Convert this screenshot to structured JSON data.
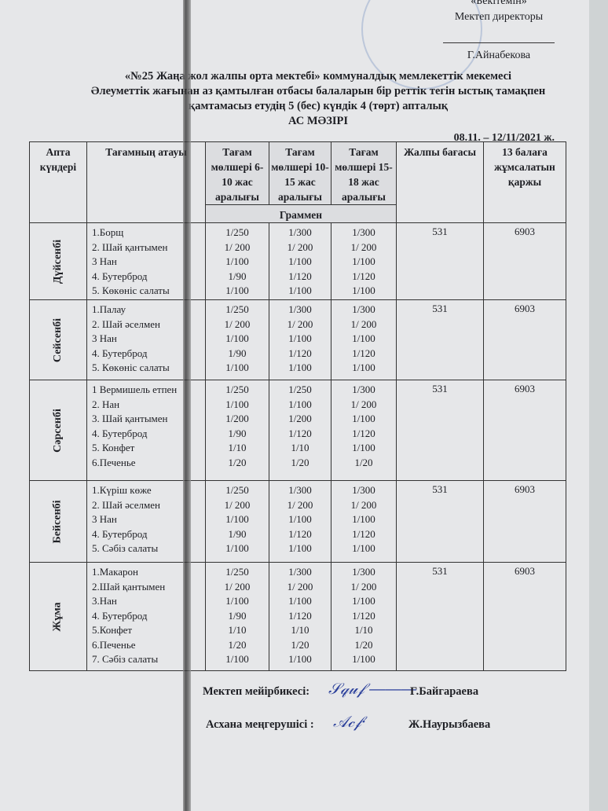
{
  "approval": {
    "label": "«Бекітемін»",
    "position": "Мектеп директоры",
    "name": "Г.Айнабекова"
  },
  "title": {
    "line1": "«№25 Жаңа жол жалпы орта мектебі» коммуналдық мемлекеттік мекемесі",
    "line2": "Әлеуметтік жағынан аз қамтылған отбасы балаларын бір реттік тегін ыстық тамақпен",
    "line3": "қамтамасыз етудің 5 (бес) күндік 4 (төрт) апталық",
    "line4": "АС МӘЗІРІ"
  },
  "date_range": "08.11. – 12/11/2021 ж.",
  "table": {
    "headers": {
      "day": "Апта күндері",
      "food": "Тағамның атауы",
      "age1": "Тағам мөлшері 6-10 жас аралығы",
      "age2": "Тағам мөлшері 10-15 жас аралығы",
      "age3": "Тағам мөлшері 15-18 жас аралығы",
      "price": "Жалпы бағасы",
      "total": "13 балаға жұмсалатын қаржы",
      "unit": "Граммен"
    },
    "rows": [
      {
        "day": "Дүйсенбі",
        "foods": [
          "1.Борщ",
          "2. Шай қантымен",
          "3  Нан",
          "4.  Бутерброд",
          "5. Көкөніс салаты"
        ],
        "age1": [
          "1/250",
          "1/ 200",
          "1/100",
          "1/90",
          "1/100"
        ],
        "age2": [
          "1/300",
          "1/ 200",
          "1/100",
          "1/120",
          "1/100"
        ],
        "age3": [
          "1/300",
          "1/ 200",
          "1/100",
          "1/120",
          "1/100"
        ],
        "price": "531",
        "total": "6903"
      },
      {
        "day": "Сейсенбі",
        "foods": [
          "1.Палау",
          "2. Шай әселмен",
          "3  Нан",
          "4.  Бутерброд",
          "5. Көкөніс салаты"
        ],
        "age1": [
          "1/250",
          "1/ 200",
          "1/100",
          "1/90",
          "1/100"
        ],
        "age2": [
          "1/300",
          "1/ 200",
          "1/100",
          "1/120",
          "1/100"
        ],
        "age3": [
          "1/300",
          "1/ 200",
          "1/100",
          "1/120",
          "1/100"
        ],
        "price": "531",
        "total": "6903"
      },
      {
        "day": "Сәрсенбі",
        "foods": [
          "1 Вермишель  етпен",
          "2. Нан",
          "3. Шай қантымен",
          "4. Бутерброд",
          "5. Конфет",
          "6.Печенье"
        ],
        "age1": [
          "1/250",
          "1/100",
          "1/200",
          "1/90",
          "1/10",
          "1/20"
        ],
        "age2": [
          "1/250",
          "1/100",
          "1/200",
          "1/120",
          "1/10",
          "1/20"
        ],
        "age3": [
          "1/300",
          "1/ 200",
          "1/100",
          "1/120",
          "1/100",
          "1/20"
        ],
        "price": "531",
        "total": "6903"
      },
      {
        "day": "Бейсенбі",
        "foods": [
          "1.Күріш көже",
          "2. Шай әселмен",
          "3  Нан",
          "4.  Бутерброд",
          "5. Сәбіз салаты"
        ],
        "age1": [
          "1/250",
          "1/ 200",
          "1/100",
          "1/90",
          "1/100"
        ],
        "age2": [
          "1/300",
          "1/ 200",
          "1/100",
          "1/120",
          "1/100"
        ],
        "age3": [
          "1/300",
          "1/ 200",
          "1/100",
          "1/120",
          "1/100"
        ],
        "price": "531",
        "total": "6903"
      },
      {
        "day": "Жұма",
        "foods": [
          "1.Макарон",
          "2.Шай қантымен",
          "3.Нан",
          "4.  Бутерброд",
          "5.Конфет",
          "6.Печенье",
          "7. Сәбіз салаты"
        ],
        "age1": [
          "1/250",
          "1/ 200",
          "1/100",
          "1/90",
          "1/10",
          "1/20",
          "1/100"
        ],
        "age2": [
          "1/300",
          "1/ 200",
          "1/100",
          "1/120",
          "1/10",
          "1/20",
          "1/100"
        ],
        "age3": [
          "1/300",
          "1/ 200",
          "1/100",
          "1/120",
          "1/10",
          "1/20",
          "1/100"
        ],
        "price": "531",
        "total": "6903"
      }
    ]
  },
  "signatures": [
    {
      "label": "Мектеп  мейірбикесі:",
      "name": "Г.Байгараева"
    },
    {
      "label": "Асхана  меңгерушісі :",
      "name": "Ж.Наурызбаева"
    }
  ]
}
